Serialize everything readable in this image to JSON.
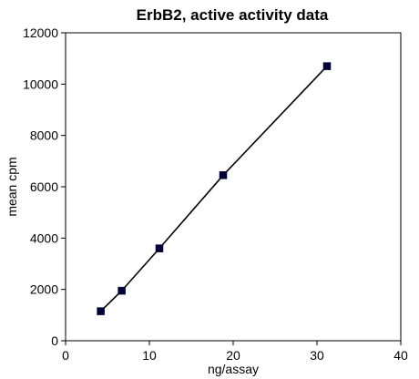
{
  "chart_data": {
    "type": "line",
    "title": "ErbB2, active activity data",
    "xlabel": "ng/assay",
    "ylabel": "mean cpm",
    "xlim": [
      0,
      40
    ],
    "ylim": [
      0,
      12000
    ],
    "x_ticks": [
      0,
      10,
      20,
      30,
      40
    ],
    "y_ticks": [
      0,
      2000,
      4000,
      6000,
      8000,
      10000,
      12000
    ],
    "grid": false,
    "legend": "none",
    "series": [
      {
        "x": [
          4.2,
          6.7,
          11.2,
          18.8,
          31.2
        ],
        "y": [
          1150,
          1950,
          3600,
          6450,
          10700
        ],
        "line_color": "#000000",
        "marker": "square",
        "marker_color": "#000033"
      }
    ]
  }
}
